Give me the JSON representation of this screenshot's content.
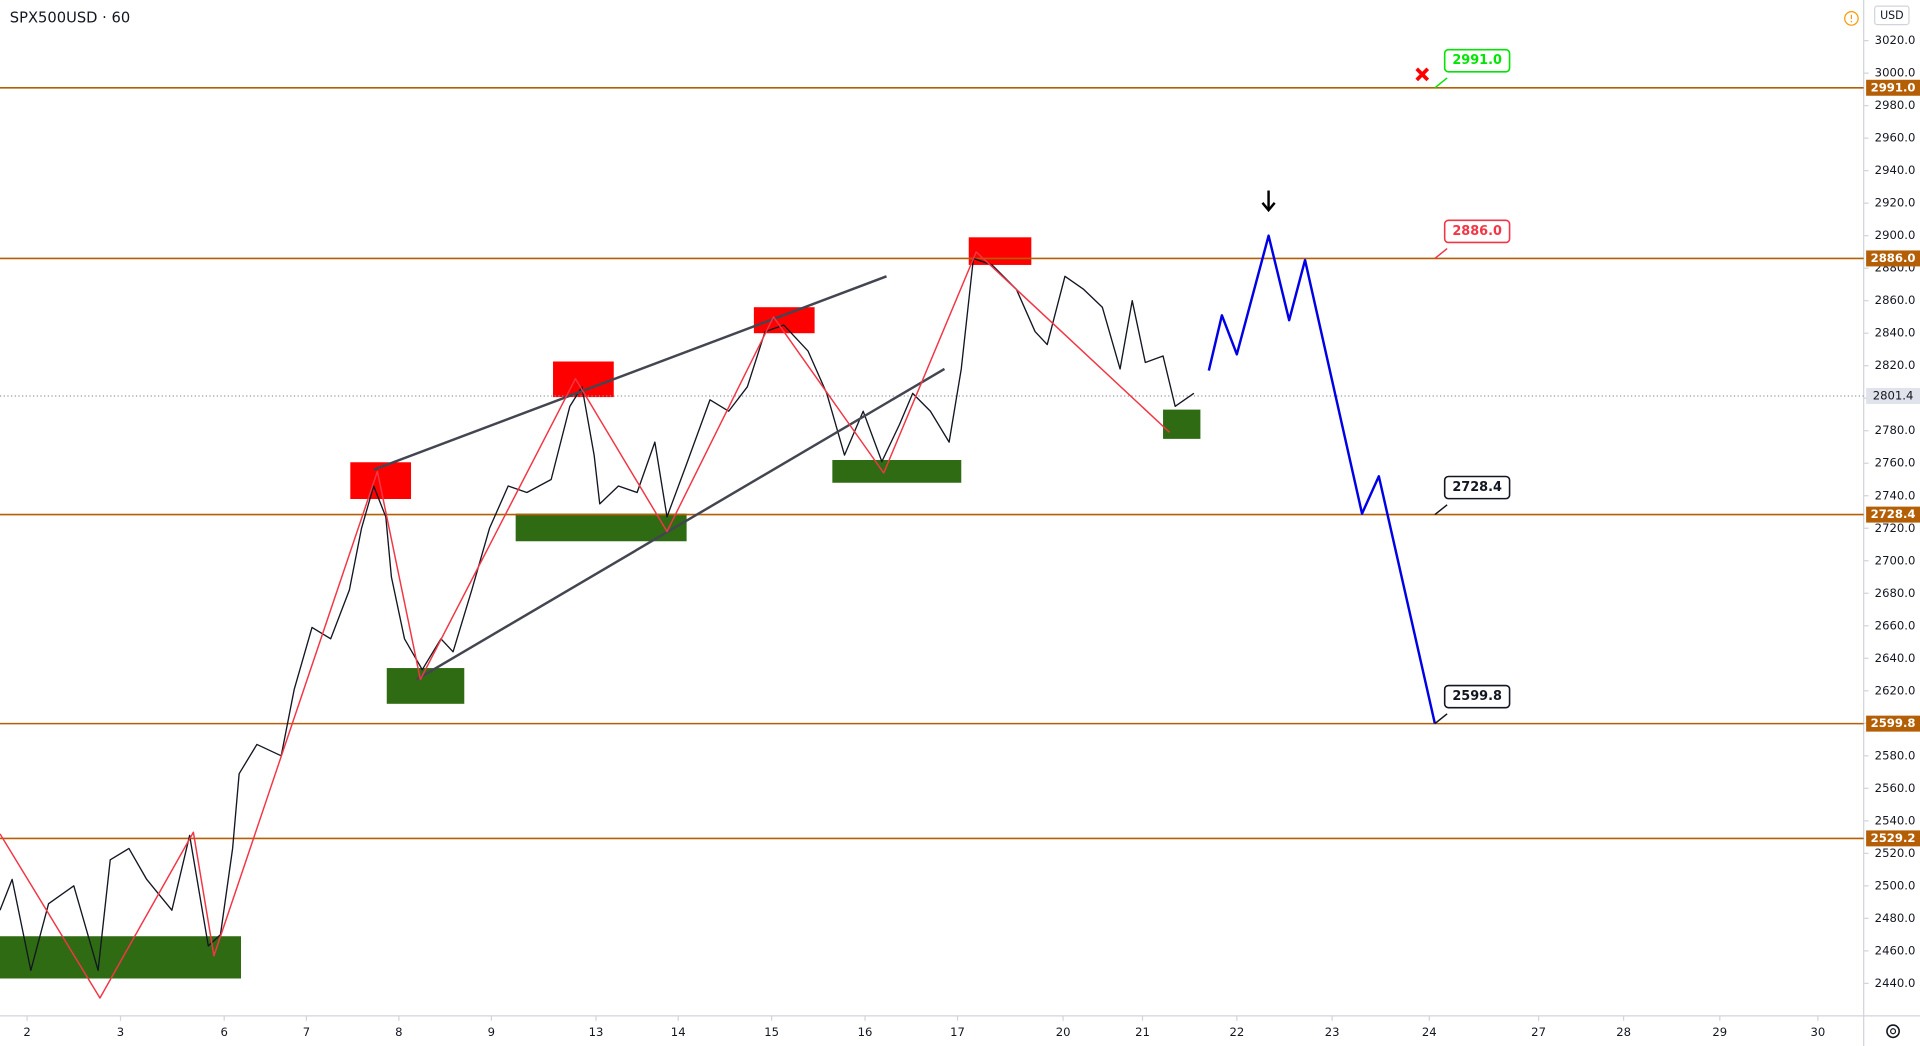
{
  "chart_data": {
    "type": "line",
    "title": "SPX500USD · 60",
    "currency": "USD",
    "color": "#131722",
    "x": [
      -0.29,
      -0.16,
      0.04,
      0.23,
      0.5,
      0.76,
      0.89,
      1.09,
      1.28,
      1.55,
      1.74,
      1.94,
      2.07,
      2.2,
      2.27,
      2.46,
      2.72,
      2.86,
      3.05,
      3.25,
      3.45,
      3.58,
      3.71,
      3.84,
      3.9,
      4.04,
      4.23,
      4.43,
      4.56,
      4.76,
      4.95,
      5.15,
      5.35,
      5.61,
      5.81,
      5.94,
      6.07,
      6.13,
      6.33,
      6.53,
      6.72,
      6.85,
      7.05,
      7.31,
      7.51,
      7.71,
      7.9,
      8.1,
      8.36,
      8.56,
      8.75,
      8.95,
      9.15,
      9.34,
      9.48,
      9.67,
      9.87,
      10.0,
      10.13,
      10.33,
      10.59,
      10.79,
      10.92,
      11.11,
      11.31,
      11.51,
      11.7,
      11.83,
      11.97,
      12.16,
      12.29,
      12.49
    ],
    "values": [
      2485,
      2504,
      2448,
      2489,
      2500,
      2448,
      2516,
      2523,
      2504,
      2485,
      2531,
      2463,
      2470,
      2523,
      2569,
      2587,
      2580,
      2621,
      2659,
      2652,
      2682,
      2720,
      2746,
      2727,
      2690,
      2652,
      2633,
      2652,
      2644,
      2682,
      2720,
      2746,
      2742,
      2750,
      2795,
      2807,
      2765,
      2735,
      2746,
      2742,
      2773,
      2727,
      2758,
      2799,
      2792,
      2807,
      2841,
      2845,
      2829,
      2803,
      2765,
      2792,
      2761,
      2784,
      2803,
      2792,
      2773,
      2818,
      2886,
      2882,
      2867,
      2841,
      2833,
      2875,
      2867,
      2856,
      2818,
      2860,
      2822,
      2826,
      2795,
      2803
    ],
    "xlim": [
      -0.29,
      19.66
    ],
    "ylim": [
      2420,
      3045
    ],
    "xticks": [
      {
        "value": 0,
        "label": "2"
      },
      {
        "value": 1,
        "label": "3"
      },
      {
        "value": 2.11,
        "label": "6"
      },
      {
        "value": 2.99,
        "label": "7"
      },
      {
        "value": 3.98,
        "label": "8"
      },
      {
        "value": 4.97,
        "label": "9"
      },
      {
        "value": 6.09,
        "label": "13"
      },
      {
        "value": 6.97,
        "label": "14"
      },
      {
        "value": 7.97,
        "label": "15"
      },
      {
        "value": 8.97,
        "label": "16"
      },
      {
        "value": 9.96,
        "label": "17"
      },
      {
        "value": 11.09,
        "label": "20"
      },
      {
        "value": 11.94,
        "label": "21"
      },
      {
        "value": 12.95,
        "label": "22"
      },
      {
        "value": 13.97,
        "label": "23"
      },
      {
        "value": 15.01,
        "label": "24"
      },
      {
        "value": 16.18,
        "label": "27"
      },
      {
        "value": 17.09,
        "label": "28"
      },
      {
        "value": 18.12,
        "label": "29"
      },
      {
        "value": 19.17,
        "label": "30"
      }
    ],
    "yticks": [
      {
        "value": 2440,
        "label": "2440.0"
      },
      {
        "value": 2460,
        "label": "2460.0"
      },
      {
        "value": 2480,
        "label": "2480.0"
      },
      {
        "value": 2500,
        "label": "2500.0"
      },
      {
        "value": 2520,
        "label": "2520.0"
      },
      {
        "value": 2540,
        "label": "2540.0"
      },
      {
        "value": 2560,
        "label": "2560.0"
      },
      {
        "value": 2580,
        "label": "2580.0"
      },
      {
        "value": 2600,
        "label": "2600.0"
      },
      {
        "value": 2620,
        "label": "2620.0"
      },
      {
        "value": 2640,
        "label": "2640.0"
      },
      {
        "value": 2660,
        "label": "2660.0"
      },
      {
        "value": 2680,
        "label": "2680.0"
      },
      {
        "value": 2700,
        "label": "2700.0"
      },
      {
        "value": 2720,
        "label": "2720.0"
      },
      {
        "value": 2740,
        "label": "2740.0"
      },
      {
        "value": 2760,
        "label": "2760.0"
      },
      {
        "value": 2780,
        "label": "2780.0"
      },
      {
        "value": 2800,
        "label": "2800.0"
      },
      {
        "value": 2820,
        "label": "2820.0"
      },
      {
        "value": 2840,
        "label": "2840.0"
      },
      {
        "value": 2860,
        "label": "2860.0"
      },
      {
        "value": 2880,
        "label": "2880.0"
      },
      {
        "value": 2900,
        "label": "2900.0"
      },
      {
        "value": 2920,
        "label": "2920.0"
      },
      {
        "value": 2940,
        "label": "2940.0"
      },
      {
        "value": 2960,
        "label": "2960.0"
      },
      {
        "value": 2980,
        "label": "2980.0"
      },
      {
        "value": 3000,
        "label": "3000.0"
      },
      {
        "value": 3020,
        "label": "3020.0"
      }
    ],
    "zigzag": {
      "color": "#f23645",
      "x": [
        -0.29,
        0.78,
        1.78,
        2.0,
        3.75,
        4.21,
        5.87,
        6.85,
        7.99,
        9.17,
        10.16,
        12.23
      ],
      "values": [
        2532,
        2431,
        2533,
        2457,
        2755,
        2627,
        2812,
        2718,
        2850,
        2754,
        2890,
        2779
      ]
    },
    "projection": {
      "color": "#0000e6",
      "x": [
        12.65,
        12.79,
        12.95,
        13.29,
        13.51,
        13.68,
        14.29,
        14.47,
        15.07
      ],
      "values": [
        2817,
        2851,
        2827,
        2900,
        2848,
        2885,
        2729,
        2752,
        2599.8
      ]
    },
    "trendlines": [
      {
        "color": "#434651",
        "x": [
          3.71,
          9.2
        ],
        "values": [
          2756,
          2875
        ]
      },
      {
        "color": "#434651",
        "x": [
          4.17,
          9.82
        ],
        "values": [
          2627,
          2818
        ]
      }
    ],
    "zones": [
      {
        "color": "#ff0000",
        "x": [
          3.46,
          4.11
        ],
        "values": [
          2738,
          2760.6
        ]
      },
      {
        "color": "#ff0000",
        "x": [
          5.63,
          6.28
        ],
        "values": [
          2800.7,
          2822.6
        ]
      },
      {
        "color": "#ff0000",
        "x": [
          7.78,
          8.43
        ],
        "values": [
          2840,
          2856
        ]
      },
      {
        "color": "#ff0000",
        "x": [
          10.08,
          10.75
        ],
        "values": [
          2882,
          2899
        ]
      },
      {
        "color": "#2e6b12",
        "x": [
          -0.29,
          2.29
        ],
        "values": [
          2443,
          2469
        ]
      },
      {
        "color": "#2e6b12",
        "x": [
          3.85,
          4.68
        ],
        "values": [
          2612,
          2634
        ]
      },
      {
        "color": "#2e6b12",
        "x": [
          5.23,
          7.06
        ],
        "values": [
          2712,
          2729
        ]
      },
      {
        "color": "#2e6b12",
        "x": [
          8.62,
          10.0
        ],
        "values": [
          2748,
          2762
        ]
      },
      {
        "color": "#2e6b12",
        "x": [
          12.16,
          12.56
        ],
        "values": [
          2775,
          2793
        ]
      }
    ],
    "levels": [
      {
        "value": 2991,
        "label": "2991.0"
      },
      {
        "value": 2886,
        "label": "2886.0"
      },
      {
        "value": 2728.4,
        "label": "2728.4"
      },
      {
        "value": 2599.8,
        "label": "2599.8"
      },
      {
        "value": 2529.2,
        "label": "2529.2"
      }
    ],
    "level_color": "#b45f06",
    "callouts": [
      {
        "x": 15.07,
        "value": 2991,
        "label": "2991.0",
        "color": "#00e600"
      },
      {
        "x": 15.07,
        "value": 2886,
        "label": "2886.0",
        "color": "#f23645"
      },
      {
        "x": 15.07,
        "value": 2728.4,
        "label": "2728.4",
        "color": "#131722"
      },
      {
        "x": 15.07,
        "value": 2599.8,
        "label": "2599.8",
        "color": "#131722"
      }
    ],
    "last_price": {
      "value": 2801.4,
      "label": "2801.4"
    }
  }
}
